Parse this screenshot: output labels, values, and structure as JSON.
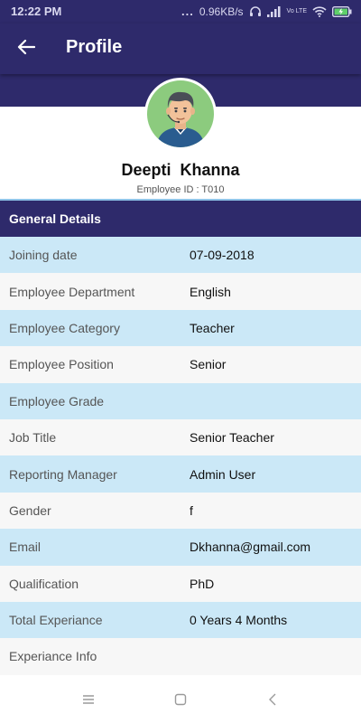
{
  "status_bar": {
    "time": "12:22 PM",
    "dots": "...",
    "speed": "0.96KB/s",
    "lte_label": "Vo LTE",
    "icons": [
      "headphones-icon",
      "signal-icon",
      "wifi-icon",
      "battery-charging-icon"
    ]
  },
  "app_bar": {
    "title": "Profile",
    "back_icon": "arrow-left-icon"
  },
  "profile": {
    "name": "Deepti  Khanna",
    "employee_id": "Employee ID : T010"
  },
  "general_details": {
    "heading": "General Details",
    "rows": [
      {
        "label": "Joining date",
        "value": "07-09-2018"
      },
      {
        "label": "Employee Department",
        "value": "English"
      },
      {
        "label": "Employee Category",
        "value": "Teacher"
      },
      {
        "label": "Employee Position",
        "value": "Senior"
      },
      {
        "label": "Employee Grade",
        "value": ""
      },
      {
        "label": "Job Title",
        "value": "Senior Teacher"
      },
      {
        "label": "Reporting Manager",
        "value": "Admin User"
      },
      {
        "label": "Gender",
        "value": "f"
      },
      {
        "label": "Email",
        "value": "Dkhanna@gmail.com"
      },
      {
        "label": "Qualification",
        "value": "PhD"
      },
      {
        "label": "Total Experiance",
        "value": "0 Years 4 Months"
      },
      {
        "label": "Experiance Info",
        "value": ""
      }
    ]
  },
  "colors": {
    "primary": "#2e2a6b",
    "row_highlight": "#cbe8f7",
    "row_plain": "#f7f7f7",
    "avatar_bg": "#8ccb7e"
  },
  "nav_bar": {
    "icons": [
      "menu-icon",
      "home-square-icon",
      "back-chevron-icon"
    ]
  }
}
